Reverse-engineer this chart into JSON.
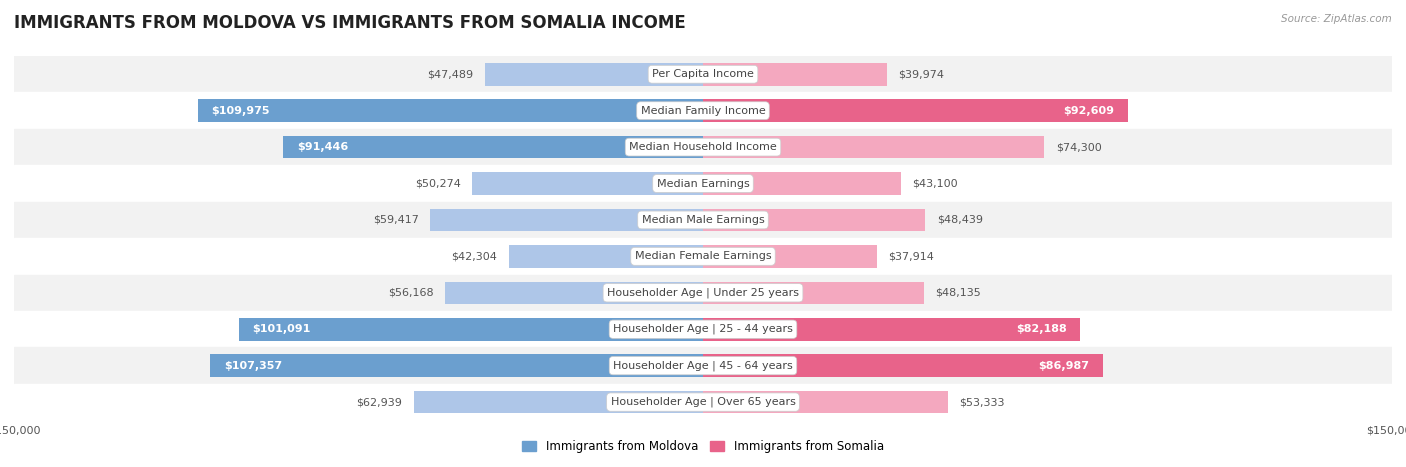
{
  "title": "IMMIGRANTS FROM MOLDOVA VS IMMIGRANTS FROM SOMALIA INCOME",
  "source": "Source: ZipAtlas.com",
  "categories": [
    "Per Capita Income",
    "Median Family Income",
    "Median Household Income",
    "Median Earnings",
    "Median Male Earnings",
    "Median Female Earnings",
    "Householder Age | Under 25 years",
    "Householder Age | 25 - 44 years",
    "Householder Age | 45 - 64 years",
    "Householder Age | Over 65 years"
  ],
  "moldova_values": [
    47489,
    109975,
    91446,
    50274,
    59417,
    42304,
    56168,
    101091,
    107357,
    62939
  ],
  "somalia_values": [
    39974,
    92609,
    74300,
    43100,
    48439,
    37914,
    48135,
    82188,
    86987,
    53333
  ],
  "moldova_labels": [
    "$47,489",
    "$109,975",
    "$91,446",
    "$50,274",
    "$59,417",
    "$42,304",
    "$56,168",
    "$101,091",
    "$107,357",
    "$62,939"
  ],
  "somalia_labels": [
    "$39,974",
    "$92,609",
    "$74,300",
    "$43,100",
    "$48,439",
    "$37,914",
    "$48,135",
    "$82,188",
    "$86,987",
    "$53,333"
  ],
  "moldova_color_light": "#aec6e8",
  "moldova_color_dark": "#6b9fcf",
  "somalia_color_light": "#f4a8bf",
  "somalia_color_dark": "#e8638a",
  "moldova_inside_threshold": 80000,
  "somalia_inside_threshold": 80000,
  "max_value": 150000,
  "bar_height": 0.62,
  "row_bg_colors": [
    "#f2f2f2",
    "#ffffff",
    "#f2f2f2",
    "#ffffff",
    "#f2f2f2",
    "#ffffff",
    "#f2f2f2",
    "#ffffff",
    "#f2f2f2",
    "#ffffff"
  ],
  "legend_moldova": "Immigrants from Moldova",
  "legend_somalia": "Immigrants from Somalia",
  "title_fontsize": 12,
  "label_fontsize": 8,
  "category_fontsize": 8,
  "axis_label_fontsize": 8
}
